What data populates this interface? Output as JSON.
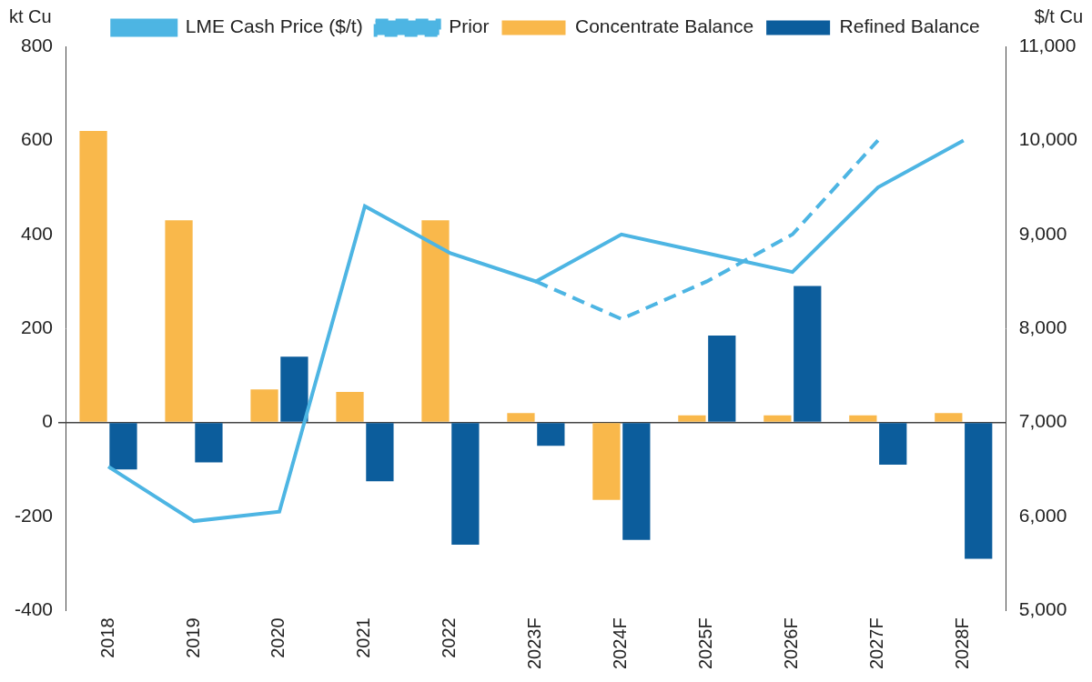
{
  "chart_data": {
    "type": "bar",
    "y_label": "kt Cu",
    "y2_label": "$/t Cu",
    "categories": [
      "2018",
      "2019",
      "2020",
      "2021",
      "2022",
      "2023F",
      "2024F",
      "2025F",
      "2026F",
      "2027F",
      "2028F"
    ],
    "series": [
      {
        "name": "Concentrate Balance",
        "type": "bar",
        "color": "#F9B84B",
        "values": [
          620,
          430,
          70,
          65,
          430,
          20,
          -165,
          15,
          15,
          15,
          20
        ]
      },
      {
        "name": "Refined Balance",
        "type": "bar",
        "color": "#0C5D9C",
        "values": [
          -100,
          -85,
          140,
          -125,
          -260,
          -50,
          -250,
          185,
          290,
          -90,
          -290
        ]
      },
      {
        "name": "LME Cash Price ($/t)",
        "type": "line",
        "axis": "y2",
        "color": "#4DB5E3",
        "line_style": "solid",
        "values": [
          6530,
          5950,
          6050,
          9300,
          8800,
          8500,
          9000,
          8800,
          8600,
          9500,
          10000
        ]
      },
      {
        "name": "Prior",
        "type": "line",
        "axis": "y2",
        "color": "#4DB5E3",
        "line_style": "dashed",
        "values": [
          null,
          null,
          null,
          null,
          null,
          8500,
          8100,
          8500,
          9000,
          10000,
          null
        ]
      }
    ],
    "ylim": [
      -400,
      800
    ],
    "yticks": [
      -400,
      -200,
      0,
      200,
      400,
      600,
      800
    ],
    "y2lim": [
      5000,
      11000
    ],
    "y2ticks": [
      {
        "value": 5000,
        "label": "5,000"
      },
      {
        "value": 6000,
        "label": "6,000"
      },
      {
        "value": 7000,
        "label": "7,000"
      },
      {
        "value": 8000,
        "label": "8,000"
      },
      {
        "value": 9000,
        "label": "9,000"
      },
      {
        "value": 10000,
        "label": "10,000"
      },
      {
        "value": 11000,
        "label": "11,000"
      }
    ],
    "grid": false,
    "legend": "top"
  }
}
